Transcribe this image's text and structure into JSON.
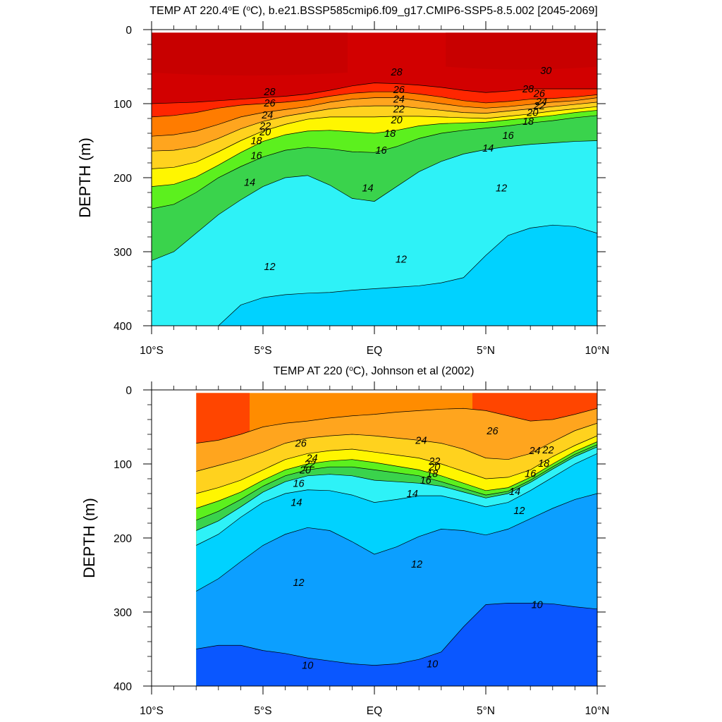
{
  "chart_data": [
    {
      "type": "contour",
      "title": "TEMP AT 220.4°E (°C), b.e21.BSSP585cmip6.f09_g17.CMIP6-SSP5-8.5.002 [2045-2069]",
      "title_parts": {
        "pre": "TEMP AT 220.4",
        "deg1": "o",
        "mid": "E (",
        "deg2": "o",
        "post": "C), b.e21.BSSP585cmip6.f09_g17.CMIP6-SSP5-8.5.002 [2045-2069]"
      },
      "xlabel": "",
      "ylabel": "DEPTH (m)",
      "xlim": [
        -10,
        10
      ],
      "ylim": [
        400,
        0
      ],
      "x_ticks": [
        {
          "value": -10,
          "label": "10°S"
        },
        {
          "value": -5,
          "label": "5°S"
        },
        {
          "value": 0,
          "label": "EQ"
        },
        {
          "value": 5,
          "label": "5°N"
        },
        {
          "value": 10,
          "label": "10°N"
        }
      ],
      "y_ticks": [
        "0",
        "100",
        "200",
        "300",
        "400"
      ],
      "lat": [
        -10,
        -9,
        -8,
        -7,
        -6,
        -5,
        -4,
        -3,
        -2,
        -1,
        0,
        1,
        2,
        3,
        4,
        5,
        6,
        7,
        8,
        9,
        10
      ],
      "depth": [
        0,
        20,
        40,
        60,
        80,
        100,
        120,
        140,
        160,
        180,
        200,
        220,
        240,
        260,
        280,
        300,
        320,
        340,
        360,
        380,
        400
      ],
      "isotherms": [
        {
          "value": 28,
          "depth": [
            100,
            99,
            98,
            96,
            94,
            92,
            90,
            87,
            82,
            76,
            72,
            73,
            75,
            78,
            82,
            85,
            83,
            80,
            80,
            80,
            80
          ]
        },
        {
          "value": 26,
          "depth": [
            118,
            116,
            112,
            106,
            102,
            100,
            98,
            95,
            90,
            86,
            84,
            84,
            87,
            91,
            96,
            99,
            97,
            94,
            93,
            91,
            88
          ]
        },
        {
          "value": 24,
          "depth": [
            144,
            142,
            137,
            128,
            118,
            112,
            108,
            104,
            98,
            94,
            92,
            92,
            96,
            100,
            104,
            106,
            104,
            101,
            98,
            96,
            92
          ]
        },
        {
          "value": 22,
          "depth": [
            164,
            163,
            158,
            147,
            134,
            124,
            117,
            112,
            107,
            104,
            103,
            103,
            106,
            109,
            112,
            113,
            110,
            107,
            104,
            101,
            98
          ]
        },
        {
          "value": 20,
          "depth": [
            188,
            186,
            179,
            165,
            150,
            137,
            128,
            121,
            118,
            118,
            118,
            117,
            117,
            118,
            119,
            120,
            117,
            114,
            110,
            107,
            104
          ]
        },
        {
          "value": 18,
          "depth": [
            212,
            209,
            199,
            183,
            166,
            151,
            142,
            137,
            136,
            138,
            140,
            136,
            130,
            127,
            126,
            125,
            122,
            119,
            116,
            112,
            109
          ]
        },
        {
          "value": 16,
          "depth": [
            242,
            236,
            220,
            200,
            185,
            172,
            163,
            159,
            161,
            165,
            166,
            158,
            147,
            140,
            136,
            133,
            130,
            126,
            123,
            119,
            116
          ]
        },
        {
          "value": 14,
          "depth": [
            312,
            300,
            275,
            250,
            230,
            212,
            200,
            197,
            210,
            228,
            232,
            212,
            192,
            178,
            168,
            162,
            158,
            155,
            153,
            151,
            150
          ]
        },
        {
          "value": 12,
          "depth": [
            400,
            400,
            400,
            400,
            372,
            362,
            358,
            356,
            355,
            352,
            350,
            348,
            346,
            342,
            335,
            305,
            278,
            268,
            264,
            266,
            275
          ]
        }
      ],
      "contour_labels": [
        {
          "text": "30",
          "x": 7.7,
          "y": 55
        },
        {
          "text": "28",
          "x": 1.0,
          "y": 57
        },
        {
          "text": "28",
          "x": -4.7,
          "y": 84
        },
        {
          "text": "28",
          "x": 6.9,
          "y": 80
        },
        {
          "text": "26",
          "x": -4.7,
          "y": 99
        },
        {
          "text": "26",
          "x": 1.1,
          "y": 81
        },
        {
          "text": "26",
          "x": 7.4,
          "y": 86
        },
        {
          "text": "24",
          "x": -4.8,
          "y": 115
        },
        {
          "text": "24",
          "x": 1.1,
          "y": 94
        },
        {
          "text": "24",
          "x": 7.5,
          "y": 97
        },
        {
          "text": "22",
          "x": -4.9,
          "y": 130
        },
        {
          "text": "22",
          "x": 1.1,
          "y": 107
        },
        {
          "text": "22",
          "x": 7.4,
          "y": 103
        },
        {
          "text": "20",
          "x": -4.9,
          "y": 138
        },
        {
          "text": "20",
          "x": 1.0,
          "y": 122
        },
        {
          "text": "20",
          "x": 7.1,
          "y": 112
        },
        {
          "text": "18",
          "x": -5.3,
          "y": 150
        },
        {
          "text": "18",
          "x": 0.7,
          "y": 140
        },
        {
          "text": "18",
          "x": 6.9,
          "y": 124
        },
        {
          "text": "16",
          "x": -5.3,
          "y": 170
        },
        {
          "text": "16",
          "x": 0.3,
          "y": 163
        },
        {
          "text": "16",
          "x": 6.0,
          "y": 143
        },
        {
          "text": "14",
          "x": -5.6,
          "y": 206
        },
        {
          "text": "14",
          "x": -0.3,
          "y": 214
        },
        {
          "text": "14",
          "x": 5.1,
          "y": 160
        },
        {
          "text": "12",
          "x": -4.7,
          "y": 320
        },
        {
          "text": "12",
          "x": 1.2,
          "y": 310
        },
        {
          "text": "12",
          "x": 5.7,
          "y": 214
        }
      ]
    },
    {
      "type": "contour",
      "title": "TEMP AT 220 (°C), Johnson et al (2002)",
      "title_parts": {
        "pre": "TEMP AT 220 (",
        "deg1": "o",
        "post": "C), Johnson et al (2002)"
      },
      "xlabel": "",
      "ylabel": "DEPTH (m)",
      "xlim": [
        -10,
        10
      ],
      "ylim": [
        400,
        0
      ],
      "data_lat_range": [
        -8,
        10
      ],
      "x_ticks": [
        {
          "value": -10,
          "label": "10°S"
        },
        {
          "value": -5,
          "label": "5°S"
        },
        {
          "value": 0,
          "label": "EQ"
        },
        {
          "value": 5,
          "label": "5°N"
        },
        {
          "value": 10,
          "label": "10°N"
        }
      ],
      "y_ticks": [
        "0",
        "100",
        "200",
        "300",
        "400"
      ],
      "lat": [
        -8,
        -7,
        -6,
        -5,
        -4,
        -3,
        -2,
        -1,
        0,
        1,
        2,
        3,
        4,
        5,
        6,
        7,
        8,
        9,
        10
      ],
      "isotherms": [
        {
          "value": 26,
          "depth": [
            72,
            68,
            60,
            50,
            45,
            42,
            38,
            35,
            33,
            30,
            28,
            26,
            25,
            28,
            35,
            42,
            40,
            33,
            25
          ]
        },
        {
          "value": 24,
          "depth": [
            110,
            102,
            94,
            84,
            72,
            65,
            62,
            60,
            62,
            65,
            68,
            72,
            80,
            92,
            94,
            86,
            70,
            55,
            45
          ]
        },
        {
          "value": 22,
          "depth": [
            140,
            132,
            122,
            108,
            94,
            86,
            82,
            80,
            84,
            88,
            92,
            100,
            110,
            120,
            118,
            108,
            90,
            75,
            62
          ]
        },
        {
          "value": 20,
          "depth": [
            160,
            150,
            138,
            122,
            108,
            100,
            96,
            94,
            98,
            103,
            108,
            116,
            126,
            136,
            132,
            118,
            100,
            83,
            70
          ]
        },
        {
          "value": 18,
          "depth": [
            176,
            164,
            148,
            130,
            116,
            108,
            104,
            104,
            108,
            112,
            116,
            124,
            133,
            142,
            137,
            122,
            104,
            87,
            74
          ]
        },
        {
          "value": 16,
          "depth": [
            190,
            177,
            158,
            138,
            124,
            116,
            114,
            116,
            122,
            124,
            126,
            130,
            138,
            146,
            140,
            125,
            107,
            90,
            77
          ]
        },
        {
          "value": 14,
          "depth": [
            210,
            195,
            172,
            152,
            140,
            135,
            136,
            142,
            152,
            148,
            143,
            143,
            150,
            158,
            152,
            136,
            118,
            100,
            86
          ]
        },
        {
          "value": 12,
          "depth": [
            272,
            255,
            232,
            210,
            195,
            186,
            190,
            205,
            222,
            212,
            198,
            188,
            190,
            196,
            188,
            174,
            160,
            148,
            140
          ]
        },
        {
          "value": 10,
          "depth": [
            350,
            345,
            345,
            352,
            356,
            362,
            366,
            370,
            372,
            370,
            364,
            354,
            320,
            290,
            288,
            288,
            289,
            293,
            296
          ]
        }
      ],
      "contour_labels": [
        {
          "text": "26",
          "x": 5.3,
          "y": 55
        },
        {
          "text": "26",
          "x": -3.3,
          "y": 72
        },
        {
          "text": "24",
          "x": 2.1,
          "y": 68
        },
        {
          "text": "24",
          "x": -2.8,
          "y": 92
        },
        {
          "text": "24",
          "x": 7.2,
          "y": 82
        },
        {
          "text": "22",
          "x": 2.7,
          "y": 96
        },
        {
          "text": "22",
          "x": -2.9,
          "y": 100
        },
        {
          "text": "22",
          "x": 7.8,
          "y": 81
        },
        {
          "text": "20",
          "x": 2.7,
          "y": 104
        },
        {
          "text": "20",
          "x": -3.1,
          "y": 108
        },
        {
          "text": "18",
          "x": 2.6,
          "y": 113
        },
        {
          "text": "18",
          "x": 7.6,
          "y": 99
        },
        {
          "text": "16",
          "x": 2.3,
          "y": 122
        },
        {
          "text": "16",
          "x": -3.4,
          "y": 126
        },
        {
          "text": "16",
          "x": 7.0,
          "y": 113
        },
        {
          "text": "14",
          "x": 1.7,
          "y": 140
        },
        {
          "text": "14",
          "x": -3.5,
          "y": 152
        },
        {
          "text": "14",
          "x": 6.3,
          "y": 137
        },
        {
          "text": "12",
          "x": 1.9,
          "y": 235
        },
        {
          "text": "12",
          "x": -3.4,
          "y": 260
        },
        {
          "text": "12",
          "x": 6.5,
          "y": 163
        },
        {
          "text": "10",
          "x": 7.3,
          "y": 290
        },
        {
          "text": "10",
          "x": -3.0,
          "y": 372
        },
        {
          "text": "10",
          "x": 2.6,
          "y": 370
        }
      ]
    }
  ],
  "colors": {
    "lt10": "#0a57ff",
    "c10_12": "#0c9fff",
    "c12_14": "#00d2ff",
    "c14_16": "#2ef2f7",
    "c16_18": "#3ad34c",
    "c18_20": "#5cf01e",
    "c20_22": "#fff600",
    "c22_24": "#ffd21e",
    "c24_26": "#ffa51e",
    "c26_28": "#ff7c00",
    "c28_30": "#ff2600",
    "gt30": "#d20000"
  }
}
